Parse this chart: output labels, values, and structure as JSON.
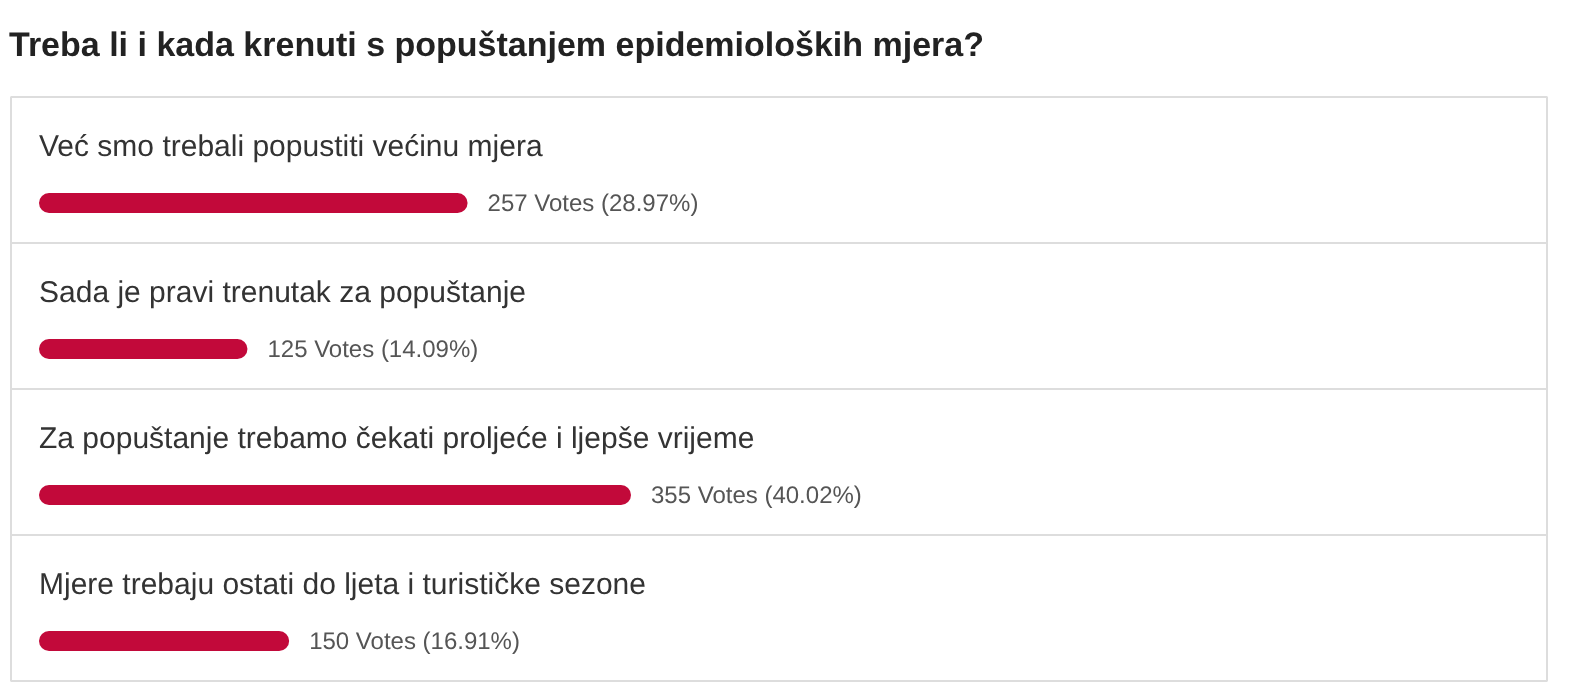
{
  "chart_data": {
    "type": "bar",
    "orientation": "horizontal",
    "title": "Treba li i kada krenuti s popuštanjem epidemioloških mjera?",
    "categories": [
      "Već smo trebali popustiti većinu mjera",
      "Sada je pravi trenutak za popuštanje",
      "Za popuštanje trebamo čekati proljeće i ljepše vrijeme",
      "Mjere trebaju ostati do ljeta i turističke sezone"
    ],
    "values": [
      257,
      125,
      355,
      150
    ],
    "value_labels": [
      "257 Votes (28.97%)",
      "125 Votes (14.09%)",
      "355 Votes (40.02%)",
      "150 Votes (16.91%)"
    ],
    "color": "#c2093a"
  }
}
